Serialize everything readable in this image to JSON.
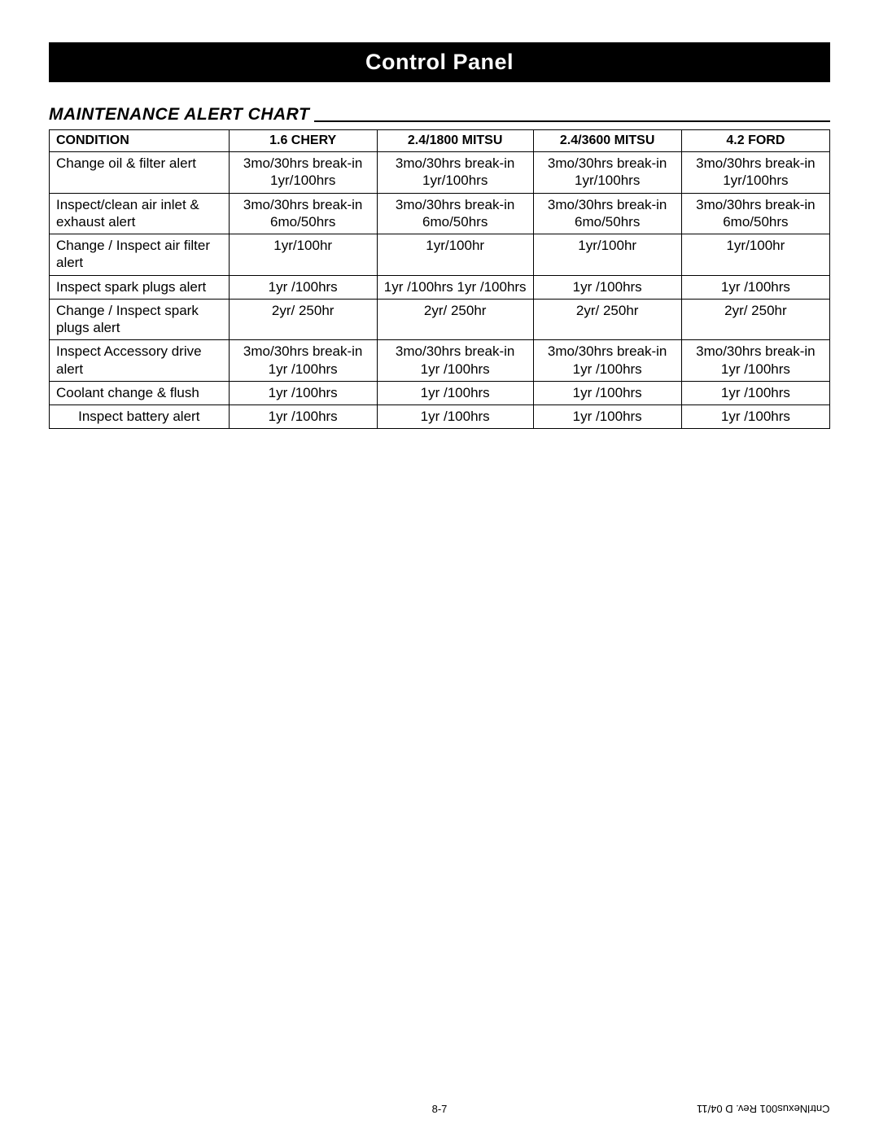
{
  "header": {
    "title": "Control Panel"
  },
  "section": {
    "title": "MAINTENANCE ALERT CHART"
  },
  "table": {
    "columns": [
      {
        "label": "CONDITION"
      },
      {
        "label": "1.6 CHERY"
      },
      {
        "label": "2.4/1800 MITSU"
      },
      {
        "label": "2.4/3600 MITSU"
      },
      {
        "label": "4.2 FORD"
      }
    ],
    "rows": [
      {
        "condition": "Change oil & filter alert",
        "c1": "3mo/30hrs break-in\n1yr/100hrs",
        "c2": "3mo/30hrs break-in\n1yr/100hrs",
        "c3": "3mo/30hrs break-in\n1yr/100hrs",
        "c4": "3mo/30hrs break-in\n1yr/100hrs",
        "cond_align": "left"
      },
      {
        "condition": "Inspect/clean air inlet &\nexhaust alert",
        "c1": "3mo/30hrs break-in\n6mo/50hrs",
        "c2": "3mo/30hrs break-in\n6mo/50hrs",
        "c3": "3mo/30hrs break-in\n6mo/50hrs",
        "c4": "3mo/30hrs break-in\n6mo/50hrs",
        "cond_align": "left"
      },
      {
        "condition": "Change / Inspect air filter\nalert",
        "c1": "1yr/100hr",
        "c2": "1yr/100hr",
        "c3": "1yr/100hr",
        "c4": "1yr/100hr",
        "cond_align": "left"
      },
      {
        "condition": "Inspect spark plugs alert",
        "c1": "1yr /100hrs",
        "c2": "1yr /100hrs 1yr /100hrs",
        "c3": "1yr /100hrs",
        "c4": "1yr /100hrs",
        "cond_align": "left"
      },
      {
        "condition": "Change / Inspect spark\nplugs alert",
        "c1": "2yr/ 250hr",
        "c2": "2yr/ 250hr",
        "c3": "2yr/ 250hr",
        "c4": "2yr/ 250hr",
        "cond_align": "left"
      },
      {
        "condition": "Inspect Accessory drive\nalert",
        "c1": "3mo/30hrs break-in\n1yr /100hrs",
        "c2": "3mo/30hrs break-in\n1yr /100hrs",
        "c3": "3mo/30hrs break-in\n1yr /100hrs",
        "c4": "3mo/30hrs break-in\n1yr /100hrs",
        "cond_align": "left"
      },
      {
        "condition": "Coolant change & flush",
        "c1": "1yr /100hrs",
        "c2": "1yr /100hrs",
        "c3": "1yr /100hrs",
        "c4": "1yr /100hrs",
        "cond_align": "left"
      },
      {
        "condition": "Inspect battery alert",
        "c1": "1yr /100hrs",
        "c2": "1yr /100hrs",
        "c3": "1yr /100hrs",
        "c4": "1yr /100hrs",
        "cond_align": "center"
      }
    ]
  },
  "footer": {
    "page_number": "8-7",
    "doc_id": "CntrlNexus001  Rev. D  04/11"
  }
}
